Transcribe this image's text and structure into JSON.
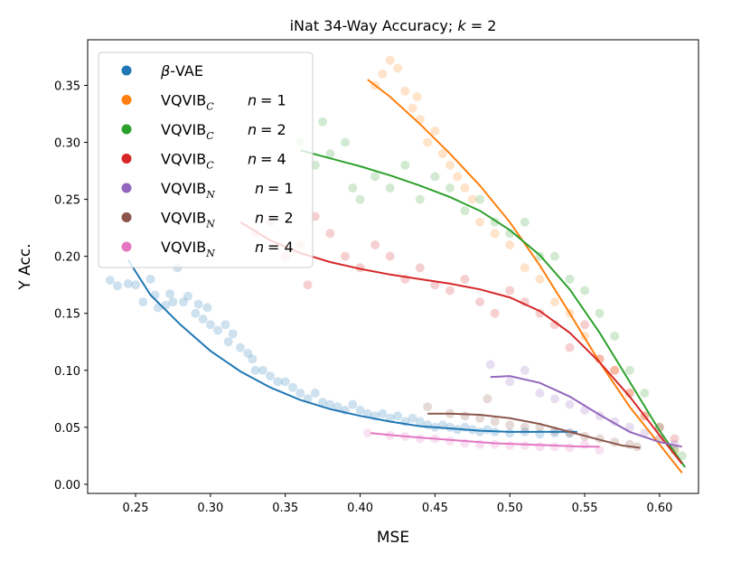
{
  "chart_data": {
    "type": "scatter",
    "title": "iNat 34-Way Accuracy; k = 2",
    "title_parts": {
      "main": "iNat 34-Way Accuracy; ",
      "var": "k",
      "rest": " = 2"
    },
    "xlabel": "MSE",
    "ylabel": "Y Acc.",
    "xlim": [
      0.218,
      0.626
    ],
    "ylim": [
      -0.008,
      0.39
    ],
    "xticks": [
      0.25,
      0.3,
      0.35,
      0.4,
      0.45,
      0.5,
      0.55,
      0.6
    ],
    "xtick_labels": [
      "0.25",
      "0.30",
      "0.35",
      "0.40",
      "0.45",
      "0.50",
      "0.55",
      "0.60"
    ],
    "yticks": [
      0.0,
      0.05,
      0.1,
      0.15,
      0.2,
      0.25,
      0.3,
      0.35
    ],
    "ytick_labels": [
      "0.00",
      "0.05",
      "0.10",
      "0.15",
      "0.20",
      "0.25",
      "0.30",
      "0.35"
    ],
    "legend_position": "top-left",
    "series": [
      {
        "name": "β-VAE",
        "legend": {
          "prefix": "β",
          "main": "-VAE",
          "sub": "",
          "n": ""
        },
        "color": "#1f77b4",
        "points": [
          [
            0.233,
            0.179
          ],
          [
            0.238,
            0.174
          ],
          [
            0.245,
            0.176
          ],
          [
            0.25,
            0.175
          ],
          [
            0.255,
            0.16
          ],
          [
            0.26,
            0.18
          ],
          [
            0.263,
            0.166
          ],
          [
            0.265,
            0.155
          ],
          [
            0.27,
            0.157
          ],
          [
            0.273,
            0.167
          ],
          [
            0.275,
            0.16
          ],
          [
            0.278,
            0.19
          ],
          [
            0.282,
            0.16
          ],
          [
            0.285,
            0.165
          ],
          [
            0.29,
            0.15
          ],
          [
            0.292,
            0.158
          ],
          [
            0.295,
            0.145
          ],
          [
            0.298,
            0.155
          ],
          [
            0.3,
            0.14
          ],
          [
            0.305,
            0.135
          ],
          [
            0.31,
            0.14
          ],
          [
            0.312,
            0.125
          ],
          [
            0.315,
            0.132
          ],
          [
            0.32,
            0.12
          ],
          [
            0.325,
            0.115
          ],
          [
            0.328,
            0.11
          ],
          [
            0.33,
            0.1
          ],
          [
            0.335,
            0.1
          ],
          [
            0.34,
            0.095
          ],
          [
            0.345,
            0.09
          ],
          [
            0.35,
            0.09
          ],
          [
            0.355,
            0.085
          ],
          [
            0.36,
            0.08
          ],
          [
            0.365,
            0.075
          ],
          [
            0.37,
            0.08
          ],
          [
            0.375,
            0.072
          ],
          [
            0.38,
            0.07
          ],
          [
            0.385,
            0.068
          ],
          [
            0.39,
            0.065
          ],
          [
            0.395,
            0.07
          ],
          [
            0.4,
            0.065
          ],
          [
            0.405,
            0.062
          ],
          [
            0.41,
            0.06
          ],
          [
            0.415,
            0.062
          ],
          [
            0.42,
            0.058
          ],
          [
            0.425,
            0.06
          ],
          [
            0.43,
            0.055
          ],
          [
            0.435,
            0.058
          ],
          [
            0.44,
            0.055
          ],
          [
            0.445,
            0.052
          ],
          [
            0.45,
            0.05
          ],
          [
            0.455,
            0.052
          ],
          [
            0.46,
            0.05
          ],
          [
            0.465,
            0.048
          ],
          [
            0.47,
            0.05
          ],
          [
            0.475,
            0.048
          ],
          [
            0.48,
            0.046
          ],
          [
            0.485,
            0.048
          ],
          [
            0.49,
            0.046
          ],
          [
            0.5,
            0.045
          ],
          [
            0.51,
            0.046
          ],
          [
            0.52,
            0.044
          ],
          [
            0.53,
            0.045
          ],
          [
            0.54,
            0.045
          ]
        ],
        "trend": [
          [
            0.245,
            0.197
          ],
          [
            0.26,
            0.166
          ],
          [
            0.28,
            0.14
          ],
          [
            0.3,
            0.117
          ],
          [
            0.32,
            0.099
          ],
          [
            0.34,
            0.085
          ],
          [
            0.36,
            0.074
          ],
          [
            0.38,
            0.066
          ],
          [
            0.4,
            0.06
          ],
          [
            0.42,
            0.055
          ],
          [
            0.44,
            0.051
          ],
          [
            0.46,
            0.049
          ],
          [
            0.48,
            0.047
          ],
          [
            0.5,
            0.046
          ],
          [
            0.52,
            0.046
          ],
          [
            0.545,
            0.046
          ]
        ]
      },
      {
        "name": "VQVIB_C n = 1",
        "legend": {
          "prefix": "",
          "main": "VQVIB",
          "sub": "C",
          "n": "1"
        },
        "color": "#ff7f0e",
        "points": [
          [
            0.41,
            0.35
          ],
          [
            0.415,
            0.36
          ],
          [
            0.42,
            0.372
          ],
          [
            0.425,
            0.365
          ],
          [
            0.43,
            0.345
          ],
          [
            0.435,
            0.33
          ],
          [
            0.438,
            0.34
          ],
          [
            0.44,
            0.32
          ],
          [
            0.445,
            0.3
          ],
          [
            0.45,
            0.31
          ],
          [
            0.455,
            0.29
          ],
          [
            0.46,
            0.28
          ],
          [
            0.465,
            0.27
          ],
          [
            0.47,
            0.26
          ],
          [
            0.475,
            0.25
          ],
          [
            0.48,
            0.23
          ],
          [
            0.49,
            0.22
          ],
          [
            0.5,
            0.21
          ],
          [
            0.51,
            0.19
          ],
          [
            0.52,
            0.18
          ],
          [
            0.53,
            0.16
          ],
          [
            0.54,
            0.15
          ],
          [
            0.55,
            0.13
          ],
          [
            0.56,
            0.11
          ],
          [
            0.57,
            0.1
          ],
          [
            0.58,
            0.08
          ],
          [
            0.59,
            0.06
          ],
          [
            0.6,
            0.04
          ],
          [
            0.61,
            0.03
          ]
        ],
        "trend": [
          [
            0.405,
            0.355
          ],
          [
            0.42,
            0.34
          ],
          [
            0.44,
            0.316
          ],
          [
            0.46,
            0.29
          ],
          [
            0.48,
            0.262
          ],
          [
            0.5,
            0.23
          ],
          [
            0.52,
            0.192
          ],
          [
            0.54,
            0.15
          ],
          [
            0.56,
            0.107
          ],
          [
            0.58,
            0.068
          ],
          [
            0.6,
            0.035
          ],
          [
            0.615,
            0.01
          ]
        ]
      },
      {
        "name": "VQVIB_C n = 2",
        "legend": {
          "prefix": "",
          "main": "VQVIB",
          "sub": "C",
          "n": "2"
        },
        "color": "#2ca02c",
        "points": [
          [
            0.36,
            0.3
          ],
          [
            0.37,
            0.28
          ],
          [
            0.375,
            0.318
          ],
          [
            0.38,
            0.29
          ],
          [
            0.39,
            0.3
          ],
          [
            0.395,
            0.26
          ],
          [
            0.4,
            0.25
          ],
          [
            0.41,
            0.27
          ],
          [
            0.42,
            0.26
          ],
          [
            0.43,
            0.28
          ],
          [
            0.44,
            0.25
          ],
          [
            0.45,
            0.27
          ],
          [
            0.46,
            0.26
          ],
          [
            0.47,
            0.24
          ],
          [
            0.48,
            0.25
          ],
          [
            0.49,
            0.23
          ],
          [
            0.5,
            0.22
          ],
          [
            0.51,
            0.23
          ],
          [
            0.52,
            0.2
          ],
          [
            0.53,
            0.2
          ],
          [
            0.54,
            0.18
          ],
          [
            0.55,
            0.17
          ],
          [
            0.56,
            0.15
          ],
          [
            0.57,
            0.13
          ],
          [
            0.58,
            0.1
          ],
          [
            0.59,
            0.08
          ],
          [
            0.6,
            0.05
          ],
          [
            0.61,
            0.03
          ],
          [
            0.615,
            0.025
          ]
        ],
        "trend": [
          [
            0.36,
            0.293
          ],
          [
            0.38,
            0.286
          ],
          [
            0.4,
            0.279
          ],
          [
            0.42,
            0.271
          ],
          [
            0.44,
            0.262
          ],
          [
            0.46,
            0.252
          ],
          [
            0.48,
            0.24
          ],
          [
            0.5,
            0.223
          ],
          [
            0.52,
            0.201
          ],
          [
            0.54,
            0.171
          ],
          [
            0.56,
            0.133
          ],
          [
            0.58,
            0.09
          ],
          [
            0.6,
            0.047
          ],
          [
            0.617,
            0.015
          ]
        ]
      },
      {
        "name": "VQVIB_C n = 4",
        "legend": {
          "prefix": "",
          "main": "VQVIB",
          "sub": "C",
          "n": "4"
        },
        "color": "#d62728",
        "points": [
          [
            0.33,
            0.22
          ],
          [
            0.34,
            0.23
          ],
          [
            0.35,
            0.2
          ],
          [
            0.36,
            0.21
          ],
          [
            0.365,
            0.175
          ],
          [
            0.37,
            0.235
          ],
          [
            0.38,
            0.22
          ],
          [
            0.39,
            0.2
          ],
          [
            0.4,
            0.19
          ],
          [
            0.41,
            0.21
          ],
          [
            0.42,
            0.2
          ],
          [
            0.43,
            0.18
          ],
          [
            0.44,
            0.19
          ],
          [
            0.45,
            0.175
          ],
          [
            0.46,
            0.17
          ],
          [
            0.47,
            0.18
          ],
          [
            0.48,
            0.16
          ],
          [
            0.49,
            0.15
          ],
          [
            0.5,
            0.17
          ],
          [
            0.51,
            0.16
          ],
          [
            0.52,
            0.15
          ],
          [
            0.53,
            0.14
          ],
          [
            0.54,
            0.12
          ],
          [
            0.55,
            0.14
          ],
          [
            0.56,
            0.11
          ],
          [
            0.57,
            0.1
          ],
          [
            0.58,
            0.08
          ],
          [
            0.59,
            0.06
          ],
          [
            0.6,
            0.05
          ],
          [
            0.61,
            0.04
          ]
        ],
        "trend": [
          [
            0.32,
            0.23
          ],
          [
            0.34,
            0.214
          ],
          [
            0.36,
            0.203
          ],
          [
            0.38,
            0.195
          ],
          [
            0.4,
            0.189
          ],
          [
            0.42,
            0.184
          ],
          [
            0.44,
            0.18
          ],
          [
            0.46,
            0.176
          ],
          [
            0.48,
            0.171
          ],
          [
            0.5,
            0.164
          ],
          [
            0.52,
            0.152
          ],
          [
            0.54,
            0.133
          ],
          [
            0.56,
            0.107
          ],
          [
            0.58,
            0.077
          ],
          [
            0.6,
            0.043
          ],
          [
            0.615,
            0.018
          ]
        ]
      },
      {
        "name": "VQVIB_N n = 1",
        "legend": {
          "prefix": "",
          "main": "VQVIB",
          "sub": "N",
          "n": "1"
        },
        "color": "#9467bd",
        "points": [
          [
            0.487,
            0.105
          ],
          [
            0.5,
            0.09
          ],
          [
            0.51,
            0.1
          ],
          [
            0.52,
            0.08
          ],
          [
            0.53,
            0.075
          ],
          [
            0.54,
            0.07
          ],
          [
            0.55,
            0.065
          ],
          [
            0.56,
            0.06
          ],
          [
            0.57,
            0.055
          ],
          [
            0.58,
            0.05
          ],
          [
            0.59,
            0.045
          ],
          [
            0.6,
            0.04
          ],
          [
            0.61,
            0.035
          ]
        ],
        "trend": [
          [
            0.487,
            0.094
          ],
          [
            0.5,
            0.095
          ],
          [
            0.52,
            0.089
          ],
          [
            0.54,
            0.077
          ],
          [
            0.56,
            0.061
          ],
          [
            0.58,
            0.046
          ],
          [
            0.6,
            0.037
          ],
          [
            0.615,
            0.033
          ]
        ]
      },
      {
        "name": "VQVIB_N n = 2",
        "legend": {
          "prefix": "",
          "main": "VQVIB",
          "sub": "N",
          "n": "2"
        },
        "color": "#8c564b",
        "points": [
          [
            0.445,
            0.068
          ],
          [
            0.46,
            0.062
          ],
          [
            0.47,
            0.06
          ],
          [
            0.48,
            0.058
          ],
          [
            0.485,
            0.075
          ],
          [
            0.49,
            0.055
          ],
          [
            0.5,
            0.052
          ],
          [
            0.51,
            0.05
          ],
          [
            0.52,
            0.05
          ],
          [
            0.53,
            0.047
          ],
          [
            0.54,
            0.045
          ],
          [
            0.55,
            0.042
          ],
          [
            0.56,
            0.04
          ],
          [
            0.57,
            0.037
          ],
          [
            0.58,
            0.035
          ],
          [
            0.585,
            0.033
          ]
        ],
        "trend": [
          [
            0.445,
            0.062
          ],
          [
            0.46,
            0.062
          ],
          [
            0.48,
            0.061
          ],
          [
            0.5,
            0.058
          ],
          [
            0.52,
            0.053
          ],
          [
            0.54,
            0.046
          ],
          [
            0.56,
            0.039
          ],
          [
            0.575,
            0.034
          ],
          [
            0.587,
            0.032
          ]
        ]
      },
      {
        "name": "VQVIB_N n = 4",
        "legend": {
          "prefix": "",
          "main": "VQVIB",
          "sub": "N",
          "n": "4"
        },
        "color": "#e377c2",
        "points": [
          [
            0.405,
            0.045
          ],
          [
            0.42,
            0.043
          ],
          [
            0.43,
            0.042
          ],
          [
            0.44,
            0.04
          ],
          [
            0.45,
            0.04
          ],
          [
            0.46,
            0.038
          ],
          [
            0.47,
            0.036
          ],
          [
            0.48,
            0.035
          ],
          [
            0.49,
            0.035
          ],
          [
            0.5,
            0.034
          ],
          [
            0.51,
            0.034
          ],
          [
            0.52,
            0.033
          ],
          [
            0.53,
            0.033
          ],
          [
            0.54,
            0.032
          ],
          [
            0.55,
            0.035
          ],
          [
            0.56,
            0.03
          ]
        ],
        "trend": [
          [
            0.407,
            0.045
          ],
          [
            0.43,
            0.042
          ],
          [
            0.45,
            0.04
          ],
          [
            0.47,
            0.038
          ],
          [
            0.49,
            0.036
          ],
          [
            0.51,
            0.035
          ],
          [
            0.53,
            0.034
          ],
          [
            0.55,
            0.033
          ],
          [
            0.56,
            0.033
          ]
        ]
      }
    ]
  }
}
